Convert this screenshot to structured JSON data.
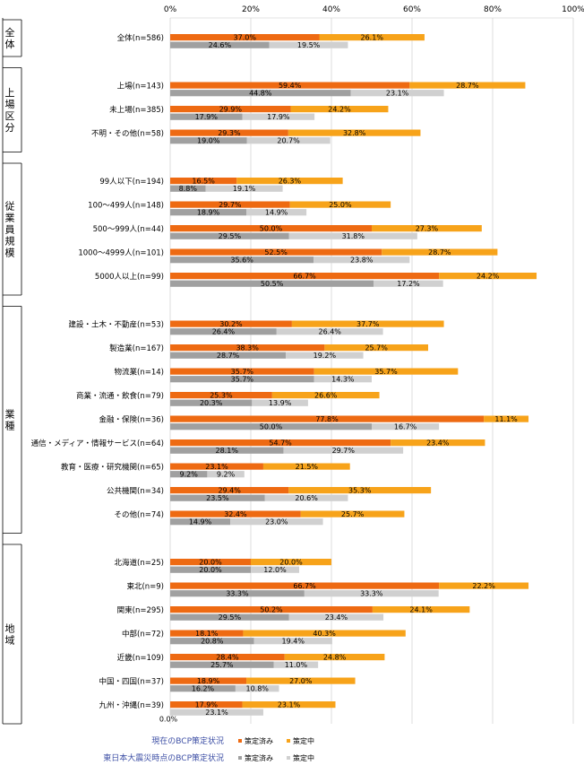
{
  "chart_data": {
    "type": "bar",
    "orientation": "horizontal",
    "stacked": true,
    "xlim": [
      0,
      100
    ],
    "x_ticks": [
      "0%",
      "20%",
      "40%",
      "60%",
      "80%",
      "100%"
    ],
    "grid": true,
    "value_suffix": "%",
    "legend": {
      "placement": "bottom",
      "rows": [
        {
          "title": "現在のBCP策定状況",
          "items": [
            "策定済み",
            "策定中"
          ],
          "colors": [
            "#ee6a12",
            "#f7a31a"
          ]
        },
        {
          "title": "東日本大震災時点のBCP策定状況",
          "items": [
            "策定済み",
            "策定中"
          ],
          "colors": [
            "#a0a0a0",
            "#d0d0d0"
          ]
        }
      ]
    },
    "series_colors": {
      "current_done": "#ee6a12",
      "current_prog": "#f7a31a",
      "past_done": "#a0a0a0",
      "past_prog": "#d0d0d0"
    },
    "groups": [
      {
        "name": "全体",
        "categories": [
          {
            "label": "全体(n=586)",
            "current": [
              37.0,
              26.1
            ],
            "past": [
              24.6,
              19.5
            ]
          }
        ]
      },
      {
        "name": "上場区分",
        "categories": [
          {
            "label": "上場(n=143)",
            "current": [
              59.4,
              28.7
            ],
            "past": [
              44.8,
              23.1
            ]
          },
          {
            "label": "未上場(n=385)",
            "current": [
              29.9,
              24.2
            ],
            "past": [
              17.9,
              17.9
            ]
          },
          {
            "label": "不明・その他(n=58)",
            "current": [
              29.3,
              32.8
            ],
            "past": [
              19.0,
              20.7
            ]
          }
        ]
      },
      {
        "name": "従業員規模",
        "categories": [
          {
            "label": "99人以下(n=194)",
            "current": [
              16.5,
              26.3
            ],
            "past": [
              8.8,
              19.1
            ]
          },
          {
            "label": "100～499人(n=148)",
            "current": [
              29.7,
              25.0
            ],
            "past": [
              18.9,
              14.9
            ]
          },
          {
            "label": "500～999人(n=44)",
            "current": [
              50.0,
              27.3
            ],
            "past": [
              29.5,
              31.8
            ]
          },
          {
            "label": "1000～4999人(n=101)",
            "current": [
              52.5,
              28.7
            ],
            "past": [
              35.6,
              23.8
            ]
          },
          {
            "label": "5000人以上(n=99)",
            "current": [
              66.7,
              24.2
            ],
            "past": [
              50.5,
              17.2
            ]
          }
        ]
      },
      {
        "name": "業種",
        "categories": [
          {
            "label": "建設・土木・不動産(n=53)",
            "current": [
              30.2,
              37.7
            ],
            "past": [
              26.4,
              26.4
            ]
          },
          {
            "label": "製造業(n=167)",
            "current": [
              38.3,
              25.7
            ],
            "past": [
              28.7,
              19.2
            ]
          },
          {
            "label": "物流業(n=14)",
            "current": [
              35.7,
              35.7
            ],
            "past": [
              35.7,
              14.3
            ]
          },
          {
            "label": "商業・流通・飲食(n=79)",
            "current": [
              25.3,
              26.6
            ],
            "past": [
              20.3,
              13.9
            ]
          },
          {
            "label": "金融・保険(n=36)",
            "current": [
              77.8,
              11.1
            ],
            "past": [
              50.0,
              16.7
            ]
          },
          {
            "label": "通信・メディア・情報サービス(n=64)",
            "current": [
              54.7,
              23.4
            ],
            "past": [
              28.1,
              29.7
            ]
          },
          {
            "label": "教育・医療・研究機関(n=65)",
            "current": [
              23.1,
              21.5
            ],
            "past": [
              9.2,
              9.2
            ]
          },
          {
            "label": "公共機関(n=34)",
            "current": [
              29.4,
              35.3
            ],
            "past": [
              23.5,
              20.6
            ]
          },
          {
            "label": "その他(n=74)",
            "current": [
              32.4,
              25.7
            ],
            "past": [
              14.9,
              23.0
            ]
          }
        ]
      },
      {
        "name": "地域",
        "categories": [
          {
            "label": "北海道(n=25)",
            "current": [
              20.0,
              20.0
            ],
            "past": [
              20.0,
              12.0
            ]
          },
          {
            "label": "東北(n=9)",
            "current": [
              66.7,
              22.2
            ],
            "past": [
              33.3,
              33.3
            ]
          },
          {
            "label": "関東(n=295)",
            "current": [
              50.2,
              24.1
            ],
            "past": [
              29.5,
              23.4
            ]
          },
          {
            "label": "中部(n=72)",
            "current": [
              18.1,
              40.3
            ],
            "past": [
              20.8,
              19.4
            ]
          },
          {
            "label": "近畿(n=109)",
            "current": [
              28.4,
              24.8
            ],
            "past": [
              25.7,
              11.0
            ]
          },
          {
            "label": "中国・四国(n=37)",
            "current": [
              18.9,
              27.0
            ],
            "past": [
              16.2,
              10.8
            ]
          },
          {
            "label": "九州・沖縄(n=39)",
            "current": [
              17.9,
              23.1
            ],
            "past": [
              0.0,
              23.1
            ]
          }
        ]
      }
    ]
  }
}
